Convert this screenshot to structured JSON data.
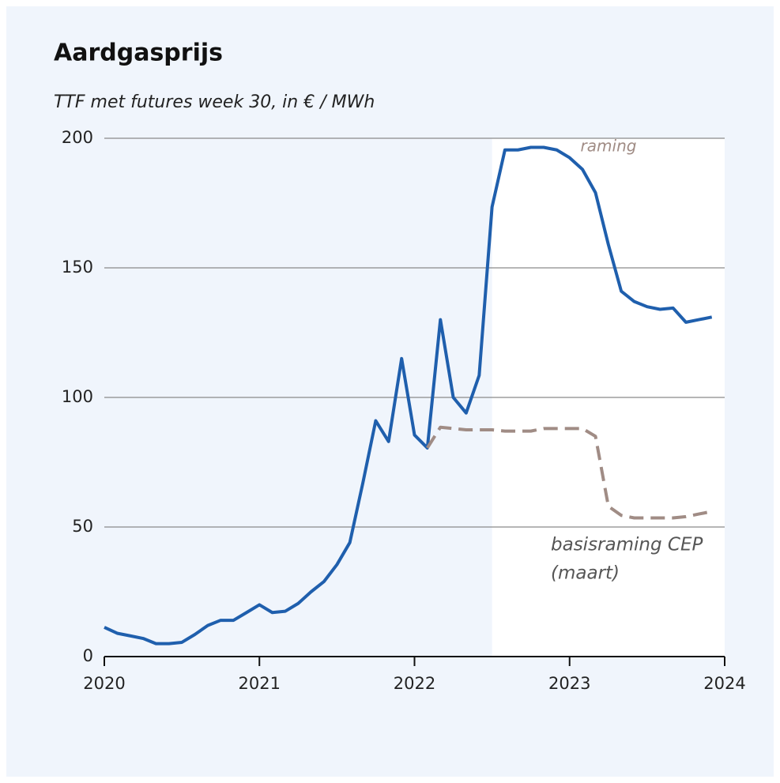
{
  "chart_data": {
    "type": "line",
    "title": "Aardgasprijs",
    "subtitle": "TTF met futures week 30, in € / MWh",
    "x": [
      2020,
      2020.083,
      2020.167,
      2020.25,
      2020.333,
      2020.417,
      2020.5,
      2020.583,
      2020.667,
      2020.75,
      2020.833,
      2020.917,
      2021,
      2021.083,
      2021.167,
      2021.25,
      2021.333,
      2021.417,
      2021.5,
      2021.583,
      2021.667,
      2021.75,
      2021.833,
      2021.917,
      2022,
      2022.083,
      2022.167,
      2022.25,
      2022.333,
      2022.417,
      2022.5,
      2022.583,
      2022.667,
      2022.75,
      2022.833,
      2022.917,
      2023,
      2023.083,
      2023.167,
      2023.25,
      2023.333,
      2023.417,
      2023.5,
      2023.583,
      2023.667,
      2023.75,
      2023.833,
      2023.917
    ],
    "series": [
      {
        "color": "#1f5fad",
        "dashed": false,
        "values": [
          11.3,
          9,
          8,
          7,
          5,
          5,
          5.5,
          8.5,
          12,
          14,
          14,
          17,
          20,
          17,
          17.5,
          20.5,
          25,
          29,
          35.5,
          44,
          67,
          91,
          83,
          115,
          85.5,
          80.5,
          130,
          100,
          94,
          108.5,
          173.5,
          195.5,
          195.5,
          196.5,
          196.5,
          195.5,
          192.5,
          188,
          179,
          159,
          141,
          137,
          135,
          134,
          134.5,
          129,
          130,
          131
        ]
      },
      {
        "color": "#a08c85",
        "dashed": true,
        "values": [
          null,
          null,
          null,
          null,
          null,
          null,
          null,
          null,
          null,
          null,
          null,
          null,
          null,
          null,
          null,
          null,
          null,
          null,
          null,
          null,
          null,
          null,
          null,
          null,
          null,
          80.5,
          88.5,
          88,
          87.5,
          87.5,
          87.5,
          87,
          87,
          87,
          88,
          88,
          88,
          88,
          85,
          58,
          54.5,
          53.5,
          53.5,
          53.5,
          53.5,
          54,
          55,
          56
        ]
      }
    ],
    "forecast_start": 2022.5,
    "forecast_label": "raming",
    "series_annotation": [
      "basisraming CEP",
      "(maart)"
    ],
    "xlim": [
      2020,
      2024
    ],
    "xticks": [
      2020,
      2021,
      2022,
      2023,
      2024
    ],
    "ylim": [
      0,
      200
    ],
    "yticks": [
      0,
      50,
      100,
      150,
      200
    ],
    "grid": true
  }
}
